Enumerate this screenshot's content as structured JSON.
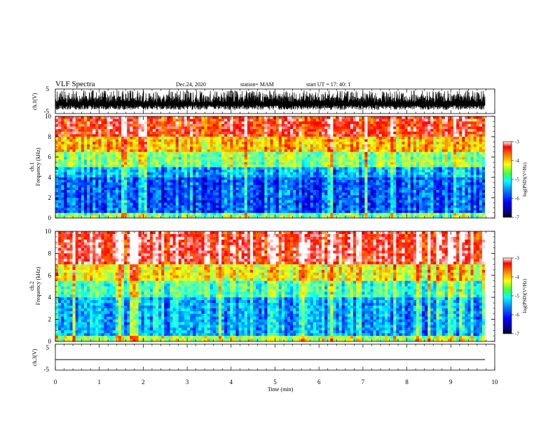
{
  "header": {
    "title": "VLF Spectra",
    "date": "Dec.24, 2020",
    "station": "station= MAM",
    "start": "start  UT =    17: 40: 1"
  },
  "chart_data": [
    {
      "type": "line",
      "panel": "ch1-waveform",
      "ylabel": "ch.1(V)",
      "ylim": [
        -5,
        5
      ],
      "yticks": [
        "5",
        "-5"
      ],
      "xlim": [
        0,
        10
      ],
      "description_values": {
        "baseline_V": -0.5,
        "burst_peak_V": 4.5,
        "burst_trough_V": -3.5
      }
    },
    {
      "type": "heatmap",
      "panel": "ch1-spectrogram",
      "ylabel_top": "ch.1",
      "ylabel": "Frequency (kHz)",
      "ylim": [
        0,
        10
      ],
      "yticks": [
        "0",
        "2",
        "4",
        "6",
        "8",
        "10"
      ],
      "xlim": [
        0,
        9.85
      ],
      "bands_kHz": [
        {
          "from": 0,
          "to": 0.6,
          "log_psd": -5.0
        },
        {
          "from": 0.6,
          "to": 4.0,
          "log_psd": -6.2
        },
        {
          "from": 4.0,
          "to": 5.0,
          "log_psd": -5.8
        },
        {
          "from": 5.0,
          "to": 6.5,
          "log_psd": -5.0
        },
        {
          "from": 6.5,
          "to": 8.0,
          "log_psd": -4.3
        },
        {
          "from": 8.0,
          "to": 10.0,
          "log_psd": -3.6
        }
      ]
    },
    {
      "type": "heatmap",
      "panel": "ch2-spectrogram",
      "ylabel_top": "ch.2",
      "ylabel": "Frequency (kHz)",
      "ylim": [
        0,
        10
      ],
      "yticks": [
        "0",
        "2",
        "4",
        "6",
        "8",
        "10"
      ],
      "xlim": [
        0,
        9.85
      ],
      "bands_kHz": [
        {
          "from": 0,
          "to": 0.6,
          "log_psd": -4.8
        },
        {
          "from": 0.6,
          "to": 4.0,
          "log_psd": -5.8
        },
        {
          "from": 4.0,
          "to": 5.5,
          "log_psd": -5.2
        },
        {
          "from": 5.5,
          "to": 7.0,
          "log_psd": -4.5
        },
        {
          "from": 7.0,
          "to": 10.0,
          "log_psd": -3.4
        }
      ]
    },
    {
      "type": "line",
      "panel": "ch3-waveform",
      "ylabel": "ch.3(V)",
      "ylim": [
        -5,
        5
      ],
      "yticks": [
        "5",
        "-5"
      ],
      "xlim": [
        0,
        9.85
      ],
      "values_V": 0
    }
  ],
  "x_axis": {
    "label": "Time (min)",
    "ticks": [
      "0",
      "1",
      "2",
      "3",
      "4",
      "5",
      "6",
      "7",
      "8",
      "9",
      "10"
    ],
    "range": [
      0,
      10
    ]
  },
  "colorbar": {
    "label": "log(PSD)(V²/Hz)",
    "range": [
      -7,
      -3
    ],
    "ticks": [
      "-3",
      "-4",
      "-5",
      "-6",
      "-7"
    ]
  },
  "colors": {
    "background": "#ffffff",
    "ink": "#000000",
    "colormap": [
      "#00007f",
      "#0000ff",
      "#0080ff",
      "#00ffff",
      "#80ff80",
      "#ffff00",
      "#ff8000",
      "#ff0000",
      "#ffffff"
    ]
  }
}
